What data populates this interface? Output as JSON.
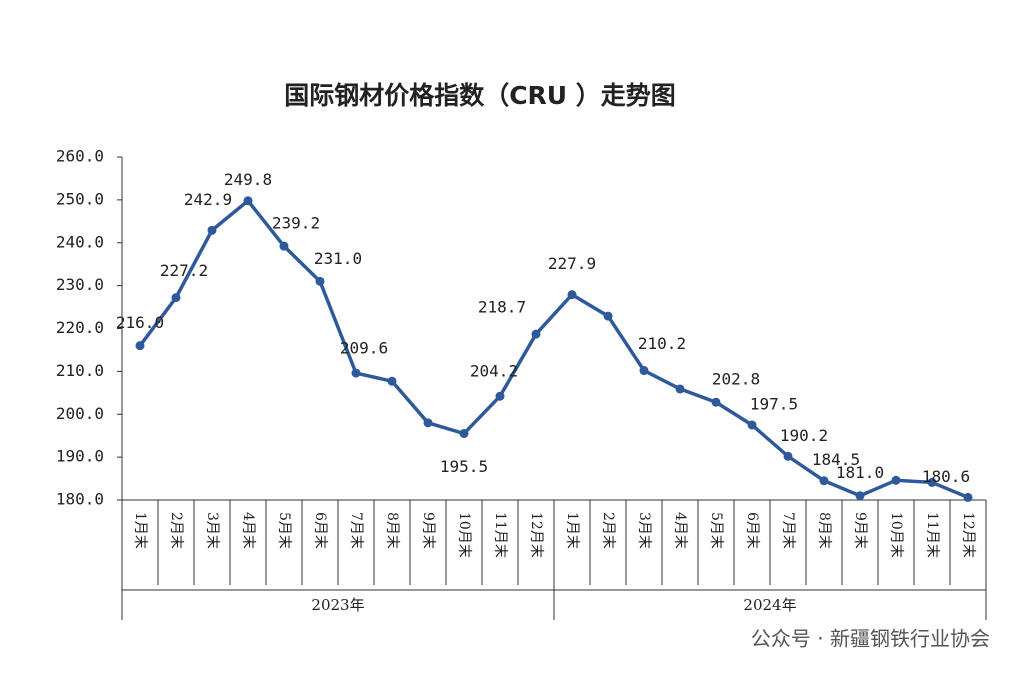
{
  "chart_data": {
    "type": "line",
    "title": "国际钢材价格指数（CRU ）走势图",
    "groups": [
      {
        "name": "2023年",
        "categories": [
          "1月末",
          "2月末",
          "3月末",
          "4月末",
          "5月末",
          "6月末",
          "7月末",
          "8月末",
          "9月末",
          "10月末",
          "11月末",
          "12月末"
        ]
      },
      {
        "name": "2024年",
        "categories": [
          "1月末",
          "2月末",
          "3月末",
          "4月末",
          "5月末",
          "6月末",
          "7月末",
          "8月末",
          "9月末",
          "10月末",
          "11月末",
          "12月末"
        ]
      }
    ],
    "series": [
      {
        "color": "#2e5a9c",
        "values": [
          216.0,
          227.2,
          242.9,
          249.8,
          239.2,
          231.0,
          209.6,
          207.7,
          198.0,
          195.5,
          204.2,
          218.7,
          227.9,
          222.9,
          210.2,
          205.9,
          202.8,
          197.5,
          190.2,
          184.5,
          181.0,
          184.6,
          184.1,
          180.6
        ],
        "value_labels": [
          "216.0",
          "227.2",
          "242.9",
          "249.8",
          "239.2",
          "231.0",
          "209.6",
          null,
          null,
          "195.5",
          "204.2",
          "218.7",
          "227.9",
          null,
          "210.2",
          null,
          "202.8",
          "197.5",
          "190.2",
          "184.5",
          "181.0",
          null,
          null,
          "180.6"
        ]
      }
    ],
    "ylim": [
      180,
      260
    ],
    "yticks": [
      {
        "value": 180,
        "label": "180.0"
      },
      {
        "value": 190,
        "label": "190.0"
      },
      {
        "value": 200,
        "label": "200.0"
      },
      {
        "value": 210,
        "label": "210.0"
      },
      {
        "value": 220,
        "label": "220.0"
      },
      {
        "value": 230,
        "label": "230.0"
      },
      {
        "value": 240,
        "label": "240.0"
      },
      {
        "value": 250,
        "label": "250.0"
      },
      {
        "value": 260,
        "label": "260.0"
      }
    ],
    "watermark": "公众号 · 新疆钢铁行业协会"
  }
}
